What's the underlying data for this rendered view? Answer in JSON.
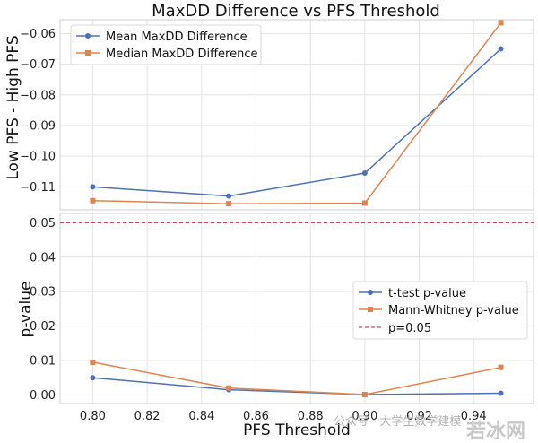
{
  "chart_data": [
    {
      "type": "line",
      "title": "MaxDD Difference vs PFS Threshold",
      "xlabel": "",
      "ylabel": "Low PFS - High PFS",
      "x": [
        0.8,
        0.85,
        0.9,
        0.95
      ],
      "xlim": [
        0.788,
        0.962
      ],
      "ylim": [
        -0.1175,
        -0.0555
      ],
      "yticks": [
        -0.11,
        -0.1,
        -0.09,
        -0.08,
        -0.07,
        -0.06
      ],
      "ytick_labels": [
        "−0.11",
        "−0.10",
        "−0.09",
        "−0.08",
        "−0.07",
        "−0.06"
      ],
      "grid": true,
      "legend_position": "top-left",
      "series": [
        {
          "name": "Mean MaxDD Difference",
          "color": "#4c72b0",
          "marker": "circle",
          "values": [
            -0.11,
            -0.113,
            -0.1055,
            -0.065
          ]
        },
        {
          "name": "Median MaxDD Difference",
          "color": "#dd8452",
          "marker": "square",
          "values": [
            -0.1145,
            -0.1155,
            -0.1153,
            -0.0565
          ]
        }
      ]
    },
    {
      "type": "line",
      "title": "",
      "xlabel": "PFS Threshold",
      "ylabel": "p-value",
      "x": [
        0.8,
        0.85,
        0.9,
        0.95
      ],
      "xlim": [
        0.788,
        0.962
      ],
      "ylim": [
        -0.0025,
        0.0527
      ],
      "yticks": [
        0.0,
        0.01,
        0.02,
        0.03,
        0.04,
        0.05
      ],
      "ytick_labels": [
        "0.00",
        "0.01",
        "0.02",
        "0.03",
        "0.04",
        "0.05"
      ],
      "xticks": [
        0.8,
        0.82,
        0.84,
        0.86,
        0.88,
        0.9,
        0.92,
        0.94
      ],
      "xtick_labels": [
        "0.80",
        "0.82",
        "0.84",
        "0.86",
        "0.88",
        "0.90",
        "0.92",
        "0.94"
      ],
      "grid": true,
      "legend_position": "center-right",
      "reference_line": {
        "name": "p=0.05",
        "value": 0.05,
        "color": "#c44e52",
        "style": "dashed"
      },
      "series": [
        {
          "name": "t-test p-value",
          "color": "#4c72b0",
          "marker": "circle",
          "values": [
            0.005,
            0.0015,
            0.0001,
            0.0005
          ]
        },
        {
          "name": "Mann-Whitney p-value",
          "color": "#dd8452",
          "marker": "square",
          "values": [
            0.0095,
            0.002,
            0.0001,
            0.008
          ]
        }
      ]
    }
  ],
  "watermark": {
    "line1": "公众号 · 大学生数学建模",
    "line2": "若冰网"
  }
}
